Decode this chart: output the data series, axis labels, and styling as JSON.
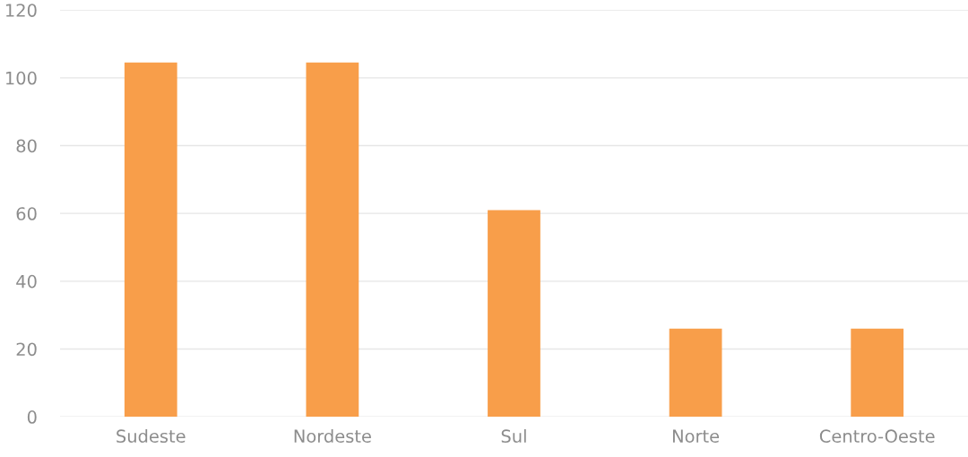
{
  "chart_data": {
    "type": "bar",
    "categories": [
      "Sudeste",
      "Nordeste",
      "Sul",
      "Norte",
      "Centro-Oeste"
    ],
    "values": [
      104.5,
      104.5,
      61,
      26,
      26
    ],
    "color": "#f89e4a",
    "ylim": [
      0,
      120
    ],
    "yticks": [
      0,
      20,
      40,
      60,
      80,
      100,
      120
    ],
    "grid": "y"
  }
}
